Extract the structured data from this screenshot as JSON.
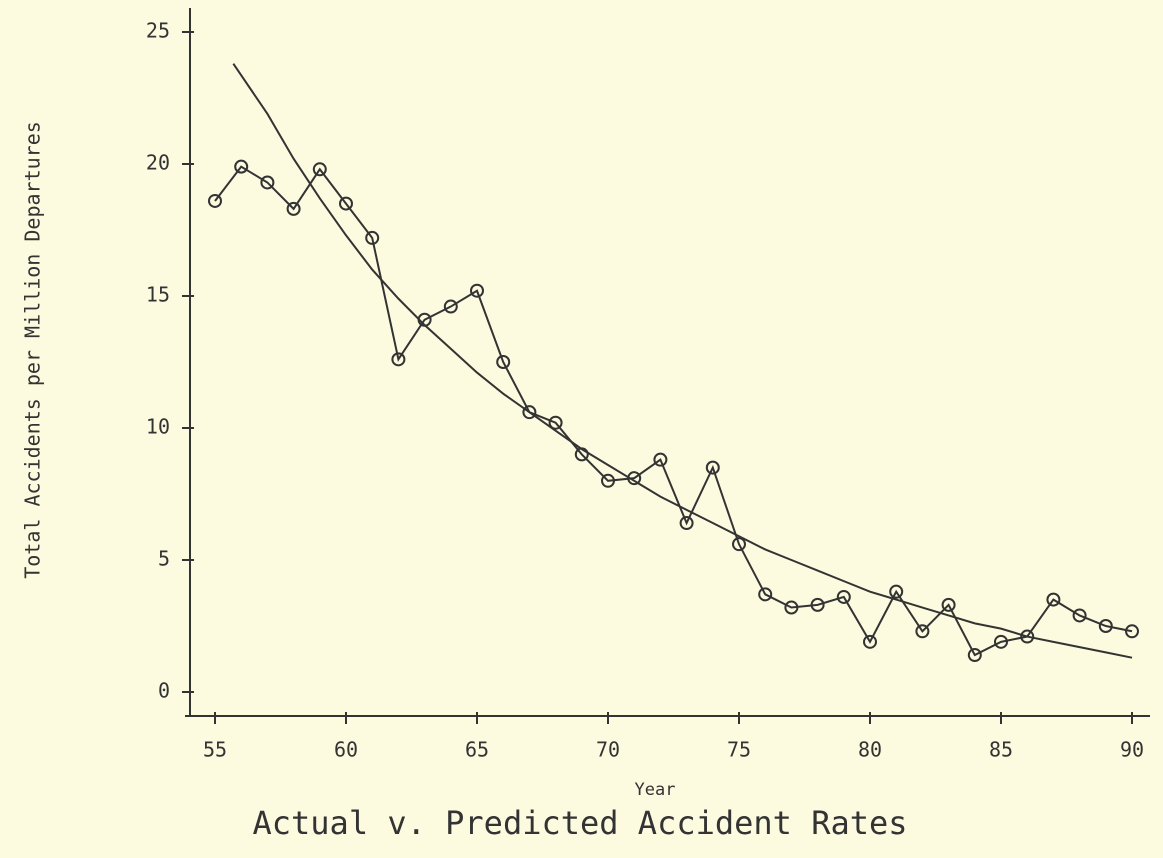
{
  "chart_data": {
    "type": "line",
    "xlabel": "Year",
    "ylabel": "Total Accidents per Million Departures",
    "caption": "Actual v. Predicted Accident Rates",
    "xlim": [
      55,
      90
    ],
    "ylim": [
      0,
      25
    ],
    "xticks": [
      55,
      60,
      65,
      70,
      75,
      80,
      85,
      90
    ],
    "yticks": [
      0,
      5,
      10,
      15,
      20,
      25
    ],
    "series": [
      {
        "color": "#333333",
        "markers": true,
        "x": [
          55,
          56,
          57,
          58,
          59,
          60,
          61,
          62,
          63,
          64,
          65,
          66,
          67,
          68,
          69,
          70,
          71,
          72,
          73,
          74,
          75,
          76,
          77,
          78,
          79,
          80,
          81,
          82,
          83,
          84,
          85,
          86,
          87,
          88,
          89,
          90
        ],
        "values": [
          18.6,
          19.9,
          19.3,
          18.3,
          19.8,
          18.5,
          17.2,
          12.6,
          14.1,
          14.6,
          15.2,
          12.5,
          10.6,
          10.2,
          9.0,
          8.0,
          8.1,
          8.8,
          6.4,
          8.5,
          5.6,
          3.7,
          3.2,
          3.3,
          3.6,
          1.9,
          3.8,
          2.3,
          3.3,
          1.4,
          1.9,
          2.1,
          3.5,
          2.9,
          2.5,
          2.3
        ]
      },
      {
        "color": "#333333",
        "markers": false,
        "x": [
          55.7,
          57,
          58,
          59,
          60,
          61,
          62,
          63,
          64,
          65,
          66,
          67,
          68,
          69,
          70,
          71,
          72,
          73,
          74,
          75,
          76,
          77,
          78,
          79,
          80,
          81,
          82,
          83,
          84,
          85,
          86,
          87,
          88,
          89,
          90
        ],
        "values": [
          23.8,
          21.9,
          20.2,
          18.7,
          17.3,
          16.0,
          14.9,
          13.9,
          13.0,
          12.1,
          11.3,
          10.6,
          9.9,
          9.2,
          8.6,
          8.0,
          7.4,
          6.9,
          6.4,
          5.9,
          5.4,
          5.0,
          4.6,
          4.2,
          3.8,
          3.5,
          3.2,
          2.9,
          2.6,
          2.4,
          2.1,
          1.9,
          1.7,
          1.5,
          1.3
        ]
      }
    ]
  }
}
